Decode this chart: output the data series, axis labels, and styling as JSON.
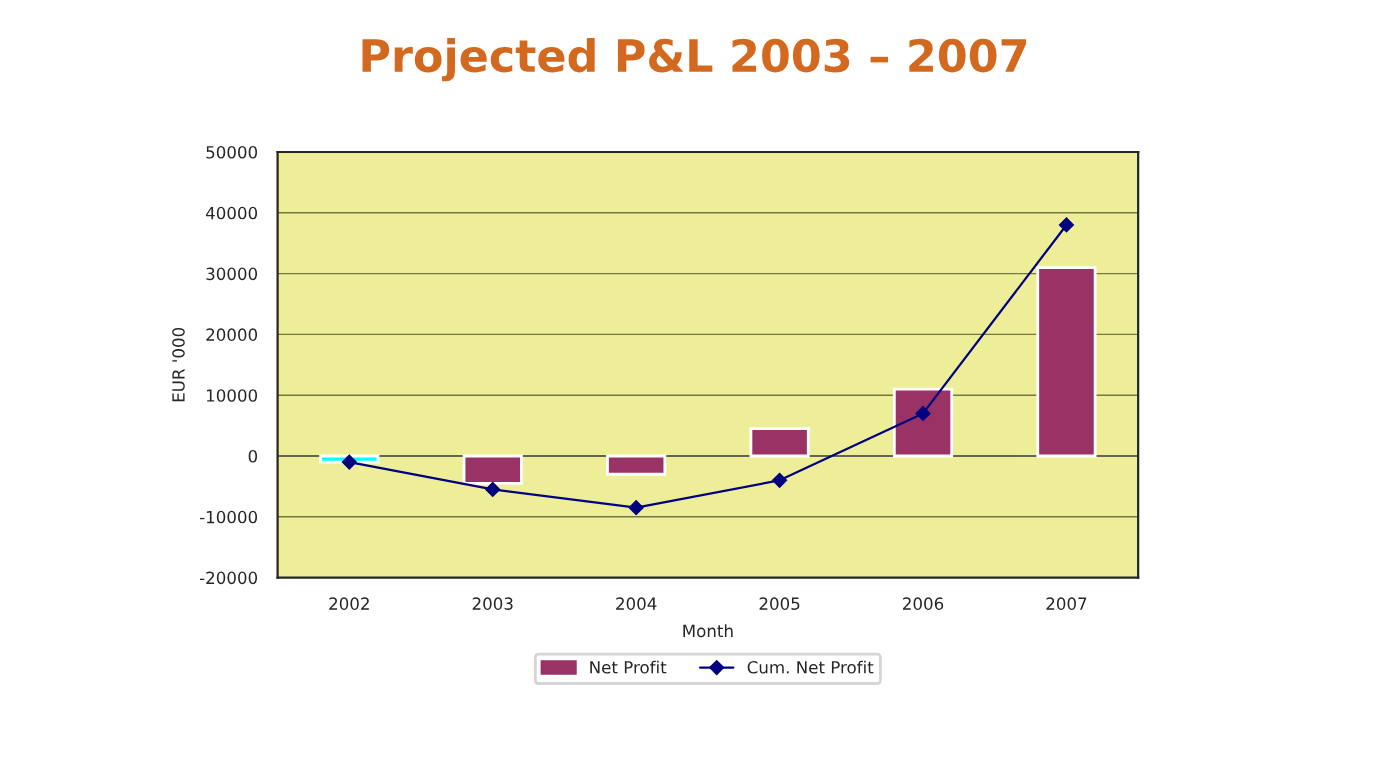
{
  "chart_data": {
    "type": "bar",
    "title": "Projected P&L 2003 – 2007",
    "xlabel": "Month",
    "ylabel": "EUR '000",
    "categories": [
      "2002",
      "2003",
      "2004",
      "2005",
      "2006",
      "2007"
    ],
    "series": [
      {
        "name": "Net Profit",
        "color": "#993366",
        "colors": [
          "#00ffff",
          "#993366",
          "#993366",
          "#993366",
          "#993366",
          "#993366"
        ],
        "values": [
          -1000,
          -4500,
          -3000,
          4500,
          11000,
          31000
        ]
      },
      {
        "name": "Cum. Net Profit",
        "type": "line",
        "color": "#000080",
        "marker": "diamond",
        "line_style": "solid",
        "values": [
          -1000,
          -5500,
          -8500,
          -4000,
          7000,
          38000
        ]
      }
    ],
    "ylim": [
      -20000,
      50000
    ],
    "yticks": [
      -20000,
      -10000,
      0,
      10000,
      20000,
      30000,
      40000,
      50000
    ],
    "grid": "y",
    "legend": "bottom"
  }
}
